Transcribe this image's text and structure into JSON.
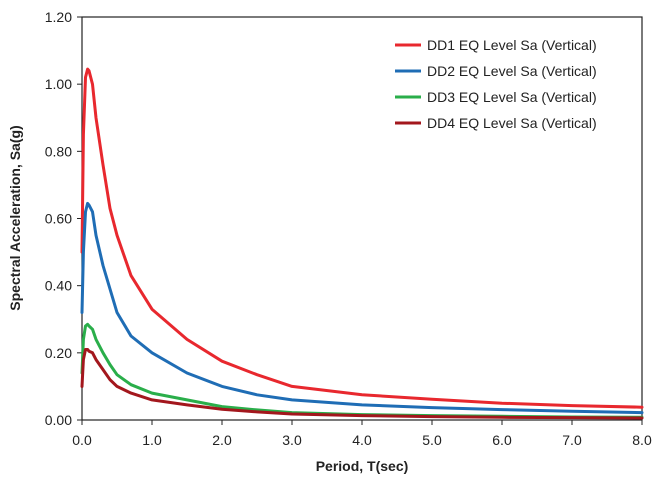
{
  "chart_data": {
    "type": "line",
    "xlabel": "Period, T(sec)",
    "ylabel": "Spectral Acceleration, Sa(g)",
    "xlim": [
      0,
      8
    ],
    "ylim": [
      0,
      1.2
    ],
    "x_ticks": [
      "0.0",
      "1.0",
      "2.0",
      "3.0",
      "4.0",
      "5.0",
      "6.0",
      "7.0",
      "8.0"
    ],
    "y_ticks": [
      "0.00",
      "0.20",
      "0.40",
      "0.60",
      "0.80",
      "1.00",
      "1.20"
    ],
    "grid": false,
    "legend_position": "top-right",
    "series": [
      {
        "name": "DD1 EQ Level Sa (Vertical)",
        "color": "#e8282e",
        "x": [
          0,
          0.02,
          0.05,
          0.08,
          0.1,
          0.15,
          0.2,
          0.3,
          0.4,
          0.5,
          0.7,
          1.0,
          1.5,
          2.0,
          2.5,
          3.0,
          4.0,
          5.0,
          6.0,
          7.0,
          8.0
        ],
        "y": [
          0.5,
          0.85,
          1.02,
          1.045,
          1.04,
          1.0,
          0.9,
          0.76,
          0.63,
          0.55,
          0.43,
          0.33,
          0.24,
          0.175,
          0.135,
          0.1,
          0.075,
          0.062,
          0.05,
          0.043,
          0.038
        ]
      },
      {
        "name": "DD2 EQ Level Sa (Vertical)",
        "color": "#1f6db5",
        "x": [
          0,
          0.02,
          0.05,
          0.08,
          0.1,
          0.15,
          0.2,
          0.3,
          0.4,
          0.5,
          0.7,
          1.0,
          1.5,
          2.0,
          2.5,
          3.0,
          4.0,
          5.0,
          6.0,
          7.0,
          8.0
        ],
        "y": [
          0.32,
          0.5,
          0.62,
          0.645,
          0.64,
          0.62,
          0.55,
          0.46,
          0.39,
          0.32,
          0.25,
          0.2,
          0.14,
          0.1,
          0.075,
          0.06,
          0.045,
          0.037,
          0.031,
          0.026,
          0.022
        ]
      },
      {
        "name": "DD3 EQ Level Sa (Vertical)",
        "color": "#2aae4a",
        "x": [
          0,
          0.02,
          0.05,
          0.08,
          0.1,
          0.15,
          0.2,
          0.3,
          0.4,
          0.5,
          0.7,
          1.0,
          1.5,
          2.0,
          2.5,
          3.0,
          4.0,
          5.0,
          6.0,
          7.0,
          8.0
        ],
        "y": [
          0.14,
          0.24,
          0.28,
          0.285,
          0.28,
          0.27,
          0.24,
          0.2,
          0.165,
          0.135,
          0.105,
          0.08,
          0.06,
          0.04,
          0.03,
          0.022,
          0.016,
          0.013,
          0.011,
          0.009,
          0.008
        ]
      },
      {
        "name": "DD4 EQ Level Sa (Vertical)",
        "color": "#a3171d",
        "x": [
          0,
          0.02,
          0.05,
          0.08,
          0.1,
          0.15,
          0.2,
          0.3,
          0.4,
          0.5,
          0.7,
          1.0,
          1.5,
          2.0,
          2.5,
          3.0,
          4.0,
          5.0,
          6.0,
          7.0,
          8.0
        ],
        "y": [
          0.1,
          0.18,
          0.21,
          0.21,
          0.205,
          0.2,
          0.18,
          0.15,
          0.12,
          0.1,
          0.08,
          0.06,
          0.045,
          0.032,
          0.024,
          0.018,
          0.013,
          0.01,
          0.008,
          0.007,
          0.006
        ]
      }
    ]
  }
}
